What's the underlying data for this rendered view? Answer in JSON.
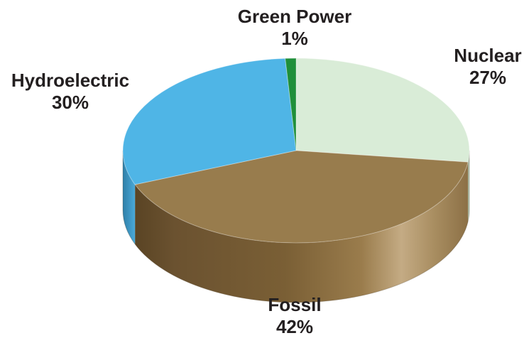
{
  "chart_data": {
    "type": "pie",
    "style": "3d",
    "slices": [
      {
        "label": "Nuclear",
        "value": 27,
        "display": "27%",
        "color": "#d9ecd7",
        "side_color": "#a39070"
      },
      {
        "label": "Fossil",
        "value": 42,
        "display": "42%",
        "color": "#987c4d",
        "side_color": "#6e552d"
      },
      {
        "label": "Hydroelectric",
        "value": 30,
        "display": "30%",
        "color": "#4fb5e6",
        "side_color": "#3a8fb8"
      },
      {
        "label": "Green Power",
        "value": 1,
        "display": "1%",
        "color": "#1f8f3a",
        "side_color": "#176b2c"
      }
    ]
  }
}
